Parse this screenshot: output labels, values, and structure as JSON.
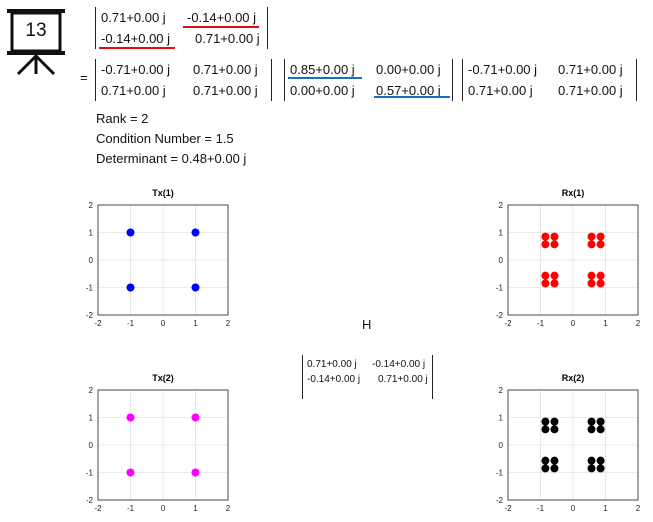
{
  "slide_badge": "13",
  "equation": {
    "lhs": [
      [
        "0.71+0.00 j",
        "-0.14+0.00 j"
      ],
      [
        "-0.14+0.00 j",
        "0.71+0.00 j"
      ]
    ],
    "equals": "=",
    "U": [
      [
        "-0.71+0.00 j",
        "0.71+0.00 j"
      ],
      [
        "0.71+0.00 j",
        "0.71+0.00 j"
      ]
    ],
    "S": [
      [
        "0.85+0.00 j",
        "0.00+0.00 j"
      ],
      [
        "0.00+0.00 j",
        "0.57+0.00 j"
      ]
    ],
    "V": [
      [
        "-0.71+0.00 j",
        "0.71+0.00 j"
      ],
      [
        "0.71+0.00 j",
        "0.71+0.00 j"
      ]
    ]
  },
  "stats": {
    "rank": "Rank = 2",
    "condition": "Condition Number = 1.5",
    "determinant": "Determinant = 0.48+0.00 j"
  },
  "channel": {
    "label": "H",
    "matrix": [
      [
        "0.71+0.00 j",
        "-0.14+0.00 j"
      ],
      [
        "-0.14+0.00 j",
        "0.71+0.00 j"
      ]
    ]
  },
  "colors": {
    "red_underline": "#e01010",
    "blue_underline": "#1a6fc4",
    "tx1": "#0000ff",
    "rx1": "#ff0000",
    "tx2": "#ff00ff",
    "rx2": "#000000"
  },
  "chart_data": [
    {
      "type": "scatter",
      "title": "Tx(1)",
      "xlim": [
        -2,
        2
      ],
      "ylim": [
        -2,
        2
      ],
      "xticks": [
        "-2",
        "-1",
        "0",
        "1",
        "2"
      ],
      "yticks": [
        "2",
        "1",
        "0",
        "-1",
        "-2"
      ],
      "grid": true,
      "color": "#0000ff",
      "points": [
        [
          -1,
          1
        ],
        [
          1,
          1
        ],
        [
          -1,
          -1
        ],
        [
          1,
          -1
        ]
      ]
    },
    {
      "type": "scatter",
      "title": "Rx(1)",
      "xlim": [
        -2,
        2
      ],
      "ylim": [
        -2,
        2
      ],
      "xticks": [
        "-2",
        "-1",
        "0",
        "1",
        "2"
      ],
      "yticks": [
        "2",
        "1",
        "0",
        "-1",
        "-2"
      ],
      "grid": true,
      "color": "#ff0000",
      "points": [
        [
          -0.85,
          0.57
        ],
        [
          -0.57,
          0.85
        ],
        [
          -0.57,
          0.57
        ],
        [
          -0.85,
          0.85
        ],
        [
          0.57,
          0.57
        ],
        [
          0.85,
          0.85
        ],
        [
          0.57,
          0.85
        ],
        [
          0.85,
          0.57
        ],
        [
          -0.85,
          -0.57
        ],
        [
          -0.57,
          -0.85
        ],
        [
          -0.57,
          -0.57
        ],
        [
          -0.85,
          -0.85
        ],
        [
          0.57,
          -0.57
        ],
        [
          0.85,
          -0.85
        ],
        [
          0.57,
          -0.85
        ],
        [
          0.85,
          -0.57
        ]
      ]
    },
    {
      "type": "scatter",
      "title": "Tx(2)",
      "xlim": [
        -2,
        2
      ],
      "ylim": [
        -2,
        2
      ],
      "xticks": [
        "-2",
        "-1",
        "0",
        "1",
        "2"
      ],
      "yticks": [
        "2",
        "1",
        "0",
        "-1",
        "-2"
      ],
      "grid": true,
      "color": "#ff00ff",
      "points": [
        [
          -1,
          1
        ],
        [
          1,
          1
        ],
        [
          -1,
          -1
        ],
        [
          1,
          -1
        ]
      ]
    },
    {
      "type": "scatter",
      "title": "Rx(2)",
      "xlim": [
        -2,
        2
      ],
      "ylim": [
        -2,
        2
      ],
      "xticks": [
        "-2",
        "-1",
        "0",
        "1",
        "2"
      ],
      "yticks": [
        "2",
        "1",
        "0",
        "-1",
        "-2"
      ],
      "grid": true,
      "color": "#000000",
      "points": [
        [
          -0.85,
          0.57
        ],
        [
          -0.57,
          0.85
        ],
        [
          -0.57,
          0.57
        ],
        [
          -0.85,
          0.85
        ],
        [
          0.57,
          0.57
        ],
        [
          0.85,
          0.85
        ],
        [
          0.57,
          0.85
        ],
        [
          0.85,
          0.57
        ],
        [
          -0.85,
          -0.57
        ],
        [
          -0.57,
          -0.85
        ],
        [
          -0.57,
          -0.57
        ],
        [
          -0.85,
          -0.85
        ],
        [
          0.57,
          -0.57
        ],
        [
          0.85,
          -0.85
        ],
        [
          0.57,
          -0.85
        ],
        [
          0.85,
          -0.57
        ]
      ]
    }
  ]
}
